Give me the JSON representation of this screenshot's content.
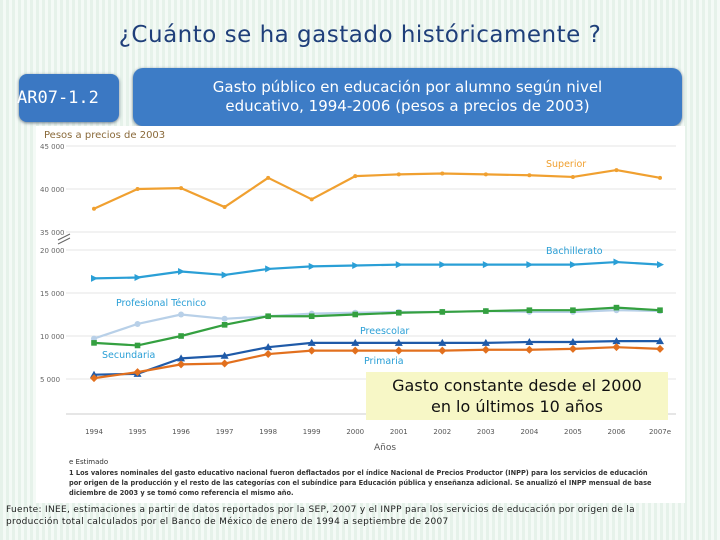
{
  "slide": {
    "title": "¿Cuánto se ha gastado históricamente ?",
    "tag": "AR07-1.2",
    "banner_line1": "Gasto público en educación por alumno según nivel",
    "banner_line2": "educativo, 1994-2006 (pesos a precios de 2003)",
    "callout_line1": "Gasto constante desde el 2000",
    "callout_line2": "en lo últimos 10 años",
    "footer_line1": "Fuente: INEE, estimaciones a partir de datos reportados por la SEP, 2007 y el INPP para los servicios de educación por origen de la",
    "footer_line2": "producción total calculados por el Banco de México de enero de 1994 a septiembre de 2007",
    "notes_line1": "e Estimado",
    "notes_line2": "1 Los valores nominales del gasto educativo nacional fueron deflactados por el índice Nacional de Precios Productor (INPP) para los servicios de educación",
    "notes_line3": "por origen de la producción y el resto de las categorías con el subíndice para Educación pública y enseñanza adicional. Se anualizó el INPP mensual de base",
    "notes_line4": "diciembre de 2003 y se tomó como referencia el mismo año.",
    "colors": {
      "superior": "#f0a030",
      "bachillerato": "#2a9fd6",
      "tecnico": "#b8d0e8",
      "preescolar": "#34a040",
      "secundaria": "#1f5aa8",
      "primaria": "#e2701e"
    }
  },
  "chart_data": {
    "type": "line",
    "title": "Pesos a precios de 2003",
    "xlabel": "Años",
    "ylabel": "Pesos a precios de 2003",
    "categories": [
      "1994",
      "1995",
      "1996",
      "1997",
      "1998",
      "1999",
      "2000",
      "2001",
      "2002",
      "2003",
      "2004",
      "2005",
      "2006",
      "2007e"
    ],
    "x_tick_labels": [
      "1994",
      "1995",
      "1996",
      "1997",
      "1998",
      "1999",
      "2000",
      "2001",
      "2002",
      "2003",
      "2004",
      "2005",
      "2006",
      "2007e"
    ],
    "y_ticks_lower": [
      "5 000",
      "10 000",
      "15 000",
      "20 000"
    ],
    "y_ticks_upper": [
      "35 000",
      "40 000",
      "45 000"
    ],
    "axis_break": "20 000 to 35 000",
    "series": [
      {
        "name": "Superior",
        "values": [
          37700,
          40000,
          40100,
          37900,
          41300,
          38800,
          41500,
          41700,
          41800,
          41700,
          41600,
          41400,
          42200,
          41300
        ]
      },
      {
        "name": "Bachillerato",
        "values": [
          16700,
          16800,
          17500,
          17100,
          17800,
          18100,
          18200,
          18300,
          18300,
          18300,
          18300,
          18300,
          18600,
          18300
        ]
      },
      {
        "name": "Profesional Técnico",
        "values": [
          9700,
          11400,
          12500,
          12000,
          12300,
          12600,
          12700,
          12800,
          12800,
          12900,
          12800,
          12800,
          13000,
          12900
        ]
      },
      {
        "name": "Preescolar",
        "values": [
          9200,
          8900,
          10000,
          11300,
          12300,
          12300,
          12500,
          12700,
          12800,
          12900,
          13000,
          13000,
          13300,
          13000
        ]
      },
      {
        "name": "Secundaria",
        "values": [
          5500,
          5600,
          7400,
          7700,
          8700,
          9200,
          9200,
          9200,
          9200,
          9200,
          9300,
          9300,
          9400,
          9400
        ]
      },
      {
        "name": "Primaria",
        "values": [
          5100,
          5800,
          6700,
          6800,
          7900,
          8300,
          8300,
          8300,
          8300,
          8400,
          8400,
          8500,
          8700,
          8500
        ]
      }
    ]
  }
}
